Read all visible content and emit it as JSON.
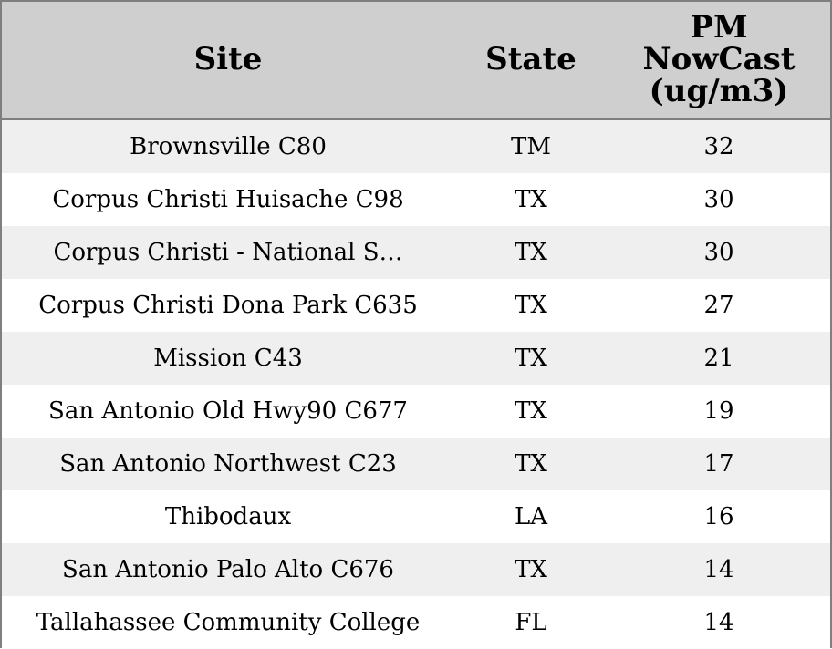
{
  "chart_data": {
    "type": "table",
    "columns": [
      "Site",
      "State",
      "PM NowCast (ug/m3)"
    ],
    "header_lines": {
      "pm": [
        "PM",
        "NowCast",
        "(ug/m3)"
      ]
    },
    "rows": [
      {
        "site": "Brownsville C80",
        "state": "TM",
        "pm": "32"
      },
      {
        "site": "Corpus Christi Huisache C98",
        "state": "TX",
        "pm": "30"
      },
      {
        "site": "Corpus Christi - National S…",
        "state": "TX",
        "pm": "30"
      },
      {
        "site": "Corpus Christi Dona Park C635",
        "state": "TX",
        "pm": "27"
      },
      {
        "site": "Mission C43",
        "state": "TX",
        "pm": "21"
      },
      {
        "site": "San Antonio Old Hwy90 C677",
        "state": "TX",
        "pm": "19"
      },
      {
        "site": "San Antonio Northwest C23",
        "state": "TX",
        "pm": "17"
      },
      {
        "site": "Thibodaux",
        "state": "LA",
        "pm": "16"
      },
      {
        "site": "San Antonio Palo Alto C676",
        "state": "TX",
        "pm": "14"
      },
      {
        "site": "Tallahassee Community College",
        "state": "FL",
        "pm": "14"
      }
    ],
    "colors": {
      "header_bg": "#cfcfcf",
      "stripe_bg": "#efefef",
      "border": "#7f7f7f"
    }
  }
}
